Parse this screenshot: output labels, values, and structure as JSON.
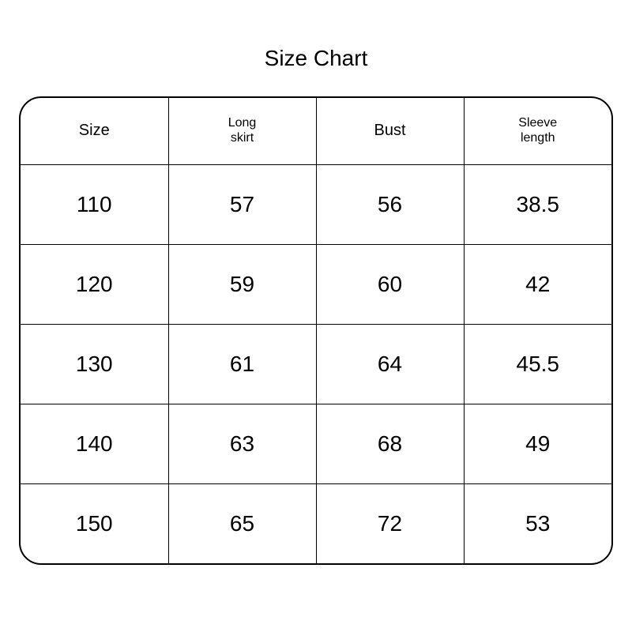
{
  "title": "Size Chart",
  "table": {
    "type": "table",
    "background_color": "#ffffff",
    "border_color": "#000000",
    "border_width": 2,
    "border_radius": 28,
    "title_fontsize": 28,
    "header_fontsize": 20,
    "header_small_fontsize": 16,
    "cell_fontsize": 28,
    "text_color": "#000000",
    "header_row_height": 84,
    "data_row_height": 101,
    "columns": [
      {
        "label": "Size",
        "small": false
      },
      {
        "label": "Long\nskirt",
        "small": true
      },
      {
        "label": "Bust",
        "small": false
      },
      {
        "label": "Sleeve\nlength",
        "small": true
      }
    ],
    "rows": [
      [
        "110",
        "57",
        "56",
        "38.5"
      ],
      [
        "120",
        "59",
        "60",
        "42"
      ],
      [
        "130",
        "61",
        "64",
        "45.5"
      ],
      [
        "140",
        "63",
        "68",
        "49"
      ],
      [
        "150",
        "65",
        "72",
        "53"
      ]
    ]
  }
}
